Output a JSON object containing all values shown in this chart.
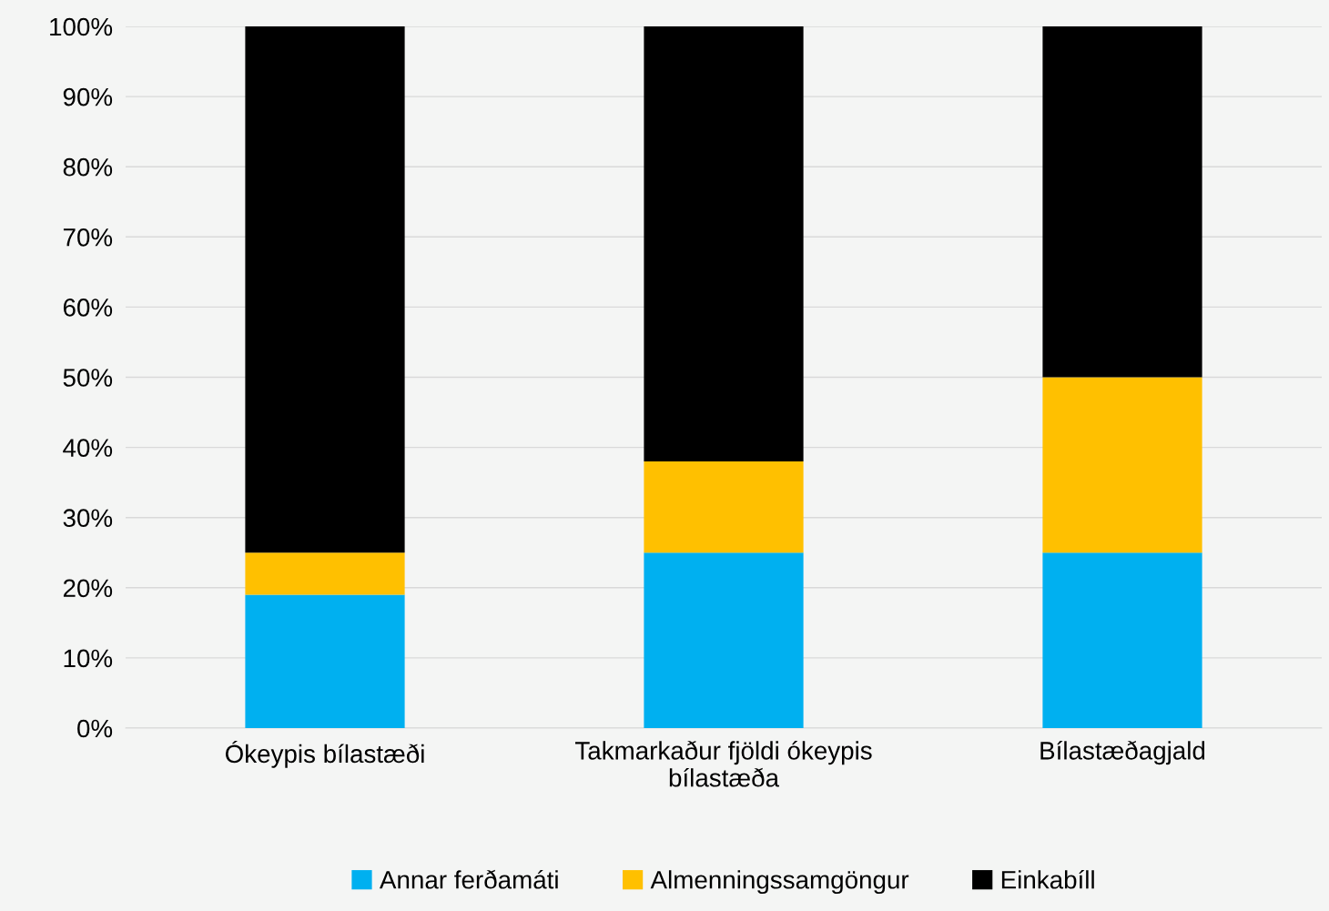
{
  "chart_data": {
    "type": "bar",
    "stacked": true,
    "categories": [
      "Ókeypis bílastæði",
      "Takmarkaður fjöldi ókeypis\nbílastæða",
      "Bílastæðagjald"
    ],
    "series": [
      {
        "name": "Annar ferðamáti",
        "color": "#00b0f0",
        "values": [
          19,
          25,
          25
        ]
      },
      {
        "name": "Almenningssamgöngur",
        "color": "#ffc000",
        "values": [
          6,
          13,
          25
        ]
      },
      {
        "name": "Einkabíll",
        "color": "#000000",
        "values": [
          75,
          62,
          50
        ]
      }
    ],
    "ylim": [
      0,
      100
    ],
    "yticks": [
      {
        "value": 0,
        "label": "0%"
      },
      {
        "value": 10,
        "label": "10%"
      },
      {
        "value": 20,
        "label": "20%"
      },
      {
        "value": 30,
        "label": "30%"
      },
      {
        "value": 40,
        "label": "40%"
      },
      {
        "value": 50,
        "label": "50%"
      },
      {
        "value": 60,
        "label": "60%"
      },
      {
        "value": 70,
        "label": "70%"
      },
      {
        "value": 80,
        "label": "80%"
      },
      {
        "value": 90,
        "label": "90%"
      },
      {
        "value": 100,
        "label": "100%"
      }
    ],
    "grid": "y",
    "legend": "bottom"
  }
}
